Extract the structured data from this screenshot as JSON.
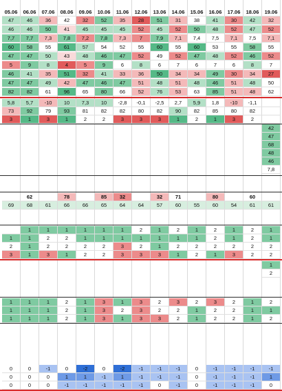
{
  "header": [
    "05.06",
    "06.06",
    "07.06",
    "08.06",
    "09.06",
    "10.06",
    "11.06",
    "12.06",
    "13.06",
    "14.06",
    "15.06",
    "16.06",
    "17.06",
    "18.06",
    "19.06"
  ],
  "colors": {
    "g3": "#55b987",
    "g2": "#7fcaa1",
    "g1": "#b3e0c6",
    "g0": "#d7eedf",
    "r3": "#e15b5b",
    "r2": "#ec8b8b",
    "r1": "#f4b9b9",
    "r0": "#f9dada",
    "b3": "#2f6fd6",
    "b2": "#6e9ae6",
    "b1": "#a9c3f2",
    "b0": "#d4e1f9",
    "w": "#ffffff",
    "red_line": "#d92b2b"
  },
  "blocks": {
    "block1": [
      {
        "v": [
          "47",
          "46",
          "36",
          "42",
          "32",
          "52",
          "35",
          "28",
          "51",
          "31",
          "38",
          "41",
          "30",
          "42",
          "32"
        ],
        "c": [
          "g1",
          "g1",
          "r1",
          "w",
          "r2",
          "g2",
          "r1",
          "r3",
          "g2",
          "r1",
          "w",
          "g1",
          "r2",
          "g1",
          "r1"
        ]
      },
      {
        "v": [
          "46",
          "46",
          "50",
          "41",
          "45",
          "45",
          "45",
          "52",
          "45",
          "52",
          "50",
          "48",
          "52",
          "47",
          "52"
        ],
        "c": [
          "g1",
          "g1",
          "g2",
          "r0",
          "g1",
          "g1",
          "g1",
          "r2",
          "g1",
          "r2",
          "g2",
          "g1",
          "r2",
          "g1",
          "r2"
        ]
      },
      {
        "v": [
          "7,7",
          "7,7",
          "7,3",
          "7,8",
          "7,2",
          "7,8",
          "7,3",
          "7",
          "7,9",
          "7,1",
          "7,4",
          "7,5",
          "7,1",
          "7,5",
          "7,1"
        ],
        "c": [
          "g2",
          "g2",
          "r1",
          "g2",
          "r2",
          "g2",
          "r1",
          "r2",
          "g2",
          "r1",
          "w",
          "w",
          "r1",
          "w",
          "r1"
        ]
      },
      {
        "v": [
          "60",
          "58",
          "55",
          "61",
          "57",
          "54",
          "52",
          "55",
          "60",
          "55",
          "60",
          "53",
          "55",
          "58",
          "55"
        ],
        "c": [
          "g3",
          "g2",
          "w",
          "g3",
          "g1",
          "w",
          "w",
          "w",
          "g3",
          "w",
          "g3",
          "w",
          "w",
          "g2",
          "w"
        ]
      },
      {
        "v": [
          "47",
          "47",
          "50",
          "43",
          "48",
          "46",
          "47",
          "52",
          "49",
          "52",
          "47",
          "48",
          "52",
          "46",
          "52"
        ],
        "c": [
          "g2",
          "g2",
          "g1",
          "r0",
          "g1",
          "g2",
          "g2",
          "r2",
          "w",
          "r2",
          "g2",
          "g1",
          "r2",
          "g2",
          "r2"
        ]
      },
      {
        "v": [
          "5",
          "9",
          "8",
          "4",
          "5",
          "9",
          "6",
          "8",
          "6",
          "7",
          "6",
          "7",
          "6",
          "8",
          "7"
        ],
        "c": [
          "r2",
          "g2",
          "g1",
          "r3",
          "r2",
          "g2",
          "w",
          "g1",
          "w",
          "w",
          "w",
          "w",
          "w",
          "g1",
          "w"
        ]
      },
      {
        "v": [
          "46",
          "41",
          "35",
          "51",
          "32",
          "41",
          "33",
          "36",
          "50",
          "34",
          "34",
          "49",
          "30",
          "34",
          "27"
        ],
        "c": [
          "g2",
          "g1",
          "r1",
          "g3",
          "r2",
          "g1",
          "r1",
          "r1",
          "g3",
          "r1",
          "r1",
          "g2",
          "r2",
          "r1",
          "r3"
        ]
      },
      {
        "v": [
          "47",
          "47",
          "49",
          "42",
          "47",
          "46",
          "47",
          "51",
          "48",
          "51",
          "48",
          "46",
          "51",
          "48",
          "50"
        ],
        "c": [
          "g2",
          "g2",
          "g1",
          "r1",
          "g2",
          "g2",
          "g2",
          "r1",
          "g1",
          "r1",
          "g1",
          "g2",
          "r1",
          "g1",
          "w"
        ]
      },
      {
        "v": [
          "82",
          "82",
          "61",
          "96",
          "65",
          "80",
          "66",
          "52",
          "76",
          "53",
          "63",
          "85",
          "51",
          "48",
          "62"
        ],
        "c": [
          "g2",
          "g2",
          "w",
          "g3",
          "w",
          "g2",
          "w",
          "r1",
          "g1",
          "r1",
          "w",
          "g2",
          "r1",
          "r1",
          "w"
        ]
      }
    ],
    "block1b": [
      {
        "v": [
          "5,8",
          "5,7",
          "-10",
          "10",
          "7,3",
          "10",
          "-2,8",
          "-0,1",
          "-2,5",
          "2,7",
          "5,9",
          "1,8",
          "-10",
          "-1,1",
          ""
        ],
        "c": [
          "g1",
          "g1",
          "r1",
          "g1",
          "g1",
          "g1",
          "w",
          "w",
          "w",
          "w",
          "g1",
          "w",
          "r1",
          "w",
          "w"
        ]
      },
      {
        "v": [
          "73",
          "92",
          "79",
          "93",
          "81",
          "82",
          "82",
          "80",
          "82",
          "90",
          "82",
          "85",
          "80",
          "82",
          ""
        ],
        "c": [
          "r1",
          "g2",
          "w",
          "g2",
          "w",
          "w",
          "w",
          "w",
          "w",
          "g1",
          "w",
          "w",
          "w",
          "w",
          "w"
        ]
      },
      {
        "v": [
          "3",
          "1",
          "3",
          "1",
          "2",
          "2",
          "3",
          "3",
          "3",
          "1",
          "2",
          "1",
          "3",
          "2",
          ""
        ],
        "c": [
          "r3",
          "g3",
          "r3",
          "g3",
          "w",
          "w",
          "r3",
          "r3",
          "r3",
          "g3",
          "w",
          "g3",
          "r3",
          "w",
          "w"
        ]
      }
    ],
    "right_column_values": [
      "42",
      "47",
      "68",
      "48",
      "46",
      "7,8"
    ],
    "row_62": [
      "",
      "62",
      "",
      "78",
      "",
      "85",
      "32",
      "",
      "32",
      "71",
      "",
      "80",
      "",
      "60",
      ""
    ],
    "row_69": [
      "69",
      "68",
      "61",
      "66",
      "66",
      "65",
      "64",
      "64",
      "57",
      "60",
      "55",
      "60",
      "54",
      "61",
      "61"
    ],
    "block2": [
      {
        "v": [
          "",
          "1",
          "1",
          "1",
          "1",
          "1",
          "1",
          "2",
          "1",
          "2",
          "1",
          "2",
          "1",
          "2",
          "1"
        ]
      },
      {
        "v": [
          "1",
          "1",
          "2",
          "2",
          "1",
          "1",
          "1",
          "1",
          "1",
          "1",
          "1",
          "2",
          "1",
          "2",
          "1"
        ]
      },
      {
        "v": [
          "2",
          "1",
          "2",
          "2",
          "2",
          "2",
          "3",
          "2",
          "1",
          "2",
          "2",
          "2",
          "2",
          "2",
          "2"
        ]
      },
      {
        "v": [
          "3",
          "1",
          "3",
          "1",
          "2",
          "2",
          "3",
          "3",
          "3",
          "1",
          "2",
          "1",
          "3",
          "2",
          "2"
        ]
      }
    ],
    "block2_right": [
      "1",
      "2"
    ],
    "block3": [
      {
        "v": [
          "1",
          "1",
          "1",
          "2",
          "1",
          "3",
          "1",
          "3",
          "2",
          "3",
          "2",
          "3",
          "2",
          "1",
          "2"
        ]
      },
      {
        "v": [
          "1",
          "1",
          "1",
          "2",
          "1",
          "3",
          "2",
          "3",
          "2",
          "2",
          "1",
          "2",
          "2",
          "1",
          "1"
        ]
      },
      {
        "v": [
          "1",
          "1",
          "1",
          "2",
          "1",
          "3",
          "1",
          "3",
          "3",
          "2",
          "1",
          "2",
          "2",
          "1",
          "2"
        ]
      }
    ],
    "block4": [
      {
        "v": [
          "0",
          "0",
          "-1",
          "0",
          "-2",
          "0",
          "-2",
          "-1",
          "-1",
          "-1",
          "0",
          "-1",
          "-1",
          "-1",
          "-1"
        ]
      },
      {
        "v": [
          "0",
          "0",
          "0",
          "1",
          "1",
          "-1",
          "1",
          "-1",
          "-1",
          "-1",
          "0",
          "-1",
          "-1",
          "-1",
          "1"
        ]
      },
      {
        "v": [
          "0",
          "0",
          "0",
          "-1",
          "-1",
          "-1",
          "-1",
          "-1",
          "0",
          "-1",
          "0",
          "-1",
          "-1",
          "-1",
          "0"
        ]
      }
    ]
  }
}
